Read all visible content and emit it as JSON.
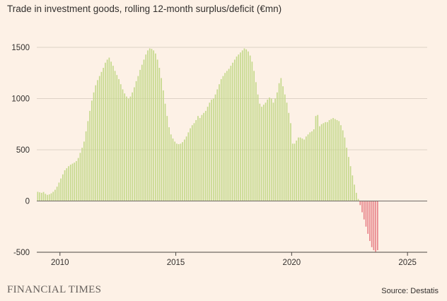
{
  "chart_data": {
    "type": "bar",
    "title": "Trade in investment goods, rolling 12-month surplus/deficit (€mn)",
    "xlabel": "",
    "ylabel": "",
    "x_start": 2009.0,
    "x_end": 2025.75,
    "x_step_months": 1,
    "xlim": [
      2009.0,
      2025.85
    ],
    "ylim": [
      -500,
      1500
    ],
    "yticks": [
      1500,
      1000,
      500,
      0,
      -500
    ],
    "xticks": [
      2010,
      2015,
      2020,
      2025
    ],
    "grid": true,
    "colors": {
      "positive": "#c5d98c",
      "negative": "#e8848a",
      "grid": "#ddd2c6",
      "zero": "#6f6a66"
    },
    "series": [
      {
        "values": [
          90,
          85,
          80,
          88,
          70,
          60,
          65,
          75,
          90,
          110,
          140,
          180,
          220,
          260,
          300,
          320,
          340,
          355,
          365,
          375,
          390,
          420,
          470,
          520,
          580,
          680,
          780,
          880,
          980,
          1060,
          1130,
          1180,
          1220,
          1260,
          1300,
          1350,
          1380,
          1400,
          1360,
          1320,
          1270,
          1230,
          1190,
          1140,
          1090,
          1050,
          1020,
          1000,
          1020,
          1060,
          1110,
          1170,
          1220,
          1280,
          1330,
          1380,
          1430,
          1470,
          1490,
          1485,
          1470,
          1440,
          1380,
          1300,
          1200,
          1080,
          950,
          830,
          720,
          650,
          610,
          580,
          560,
          555,
          560,
          575,
          600,
          630,
          670,
          710,
          740,
          760,
          790,
          830,
          810,
          840,
          860,
          880,
          920,
          960,
          990,
          1000,
          1040,
          1090,
          1140,
          1190,
          1220,
          1250,
          1270,
          1290,
          1320,
          1350,
          1380,
          1410,
          1430,
          1450,
          1470,
          1490,
          1480,
          1460,
          1420,
          1360,
          1270,
          1160,
          1040,
          950,
          920,
          940,
          960,
          990,
          1010,
          1000,
          960,
          1000,
          1060,
          1150,
          1200,
          1120,
          1040,
          960,
          860,
          760,
          560,
          560,
          590,
          620,
          620,
          610,
          600,
          630,
          650,
          670,
          680,
          700,
          830,
          840,
          730,
          750,
          760,
          770,
          770,
          790,
          800,
          810,
          800,
          790,
          780,
          740,
          690,
          620,
          520,
          430,
          340,
          250,
          160,
          80,
          20,
          -40,
          -110,
          -180,
          -250,
          -320,
          -390,
          -450,
          -480,
          -495,
          -480
        ]
      }
    ]
  },
  "footer": {
    "brand": "FINANCIAL TIMES",
    "source": "Source: Destatis"
  }
}
